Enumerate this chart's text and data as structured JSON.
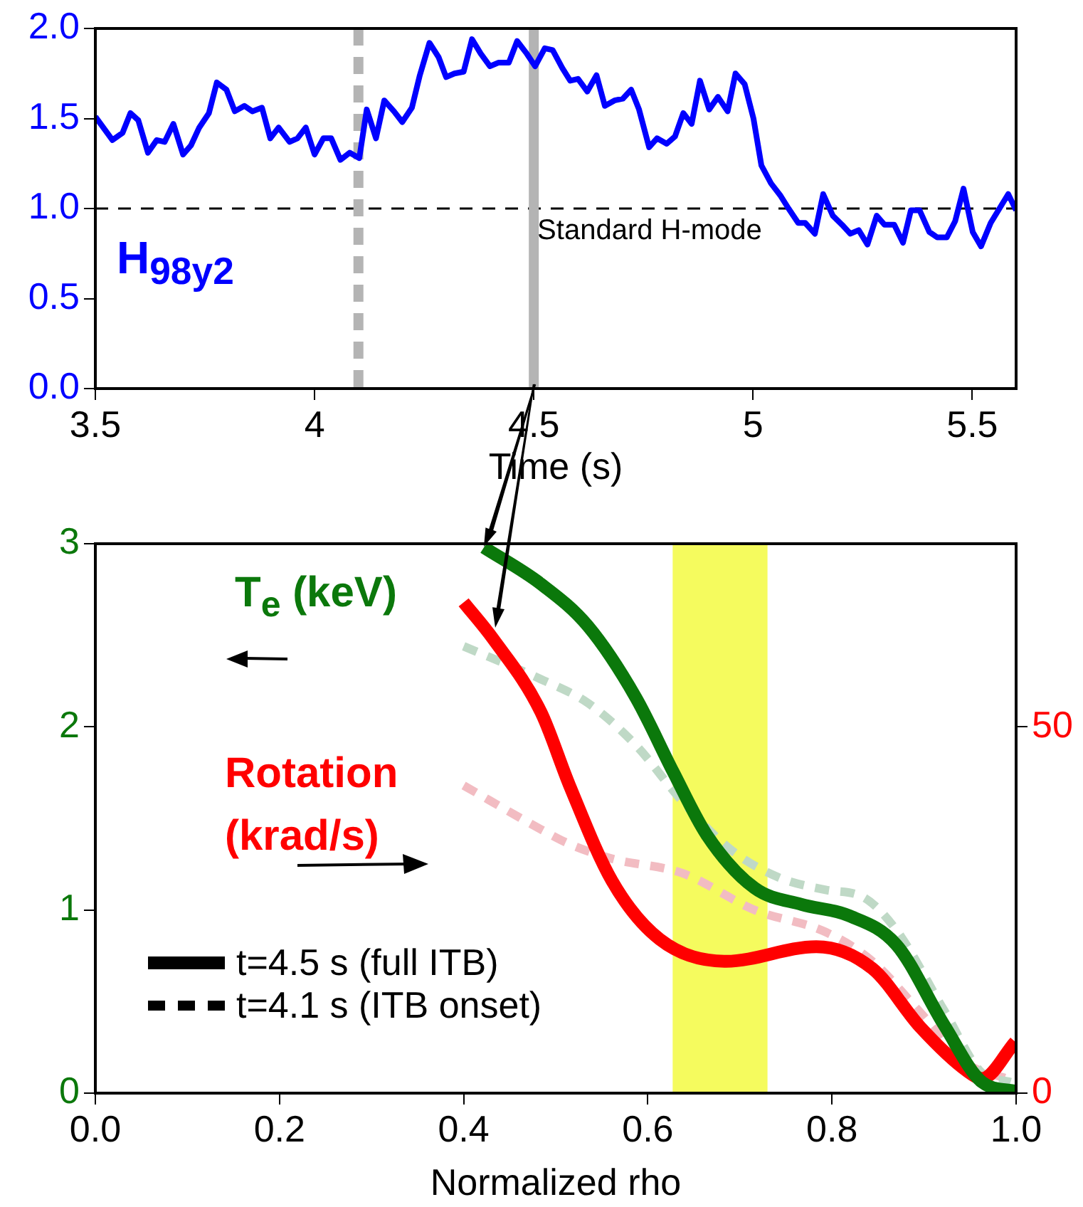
{
  "chart_data": [
    {
      "type": "line",
      "xlabel": "Time (s)",
      "xlim": [
        3.5,
        5.6
      ],
      "xticks": [
        3.5,
        4,
        4.5,
        5,
        5.5
      ],
      "ylim": [
        0,
        2
      ],
      "yticks": [
        {
          "value": 0,
          "label": "0.0"
        },
        0.5,
        {
          "value": 1,
          "label": "1.0"
        },
        1.5,
        {
          "value": 2,
          "label": "2.0"
        }
      ],
      "x": [
        3.5,
        3.539,
        3.562,
        3.58,
        3.598,
        3.62,
        3.64,
        3.658,
        3.678,
        3.7,
        3.718,
        3.737,
        3.759,
        3.777,
        3.799,
        3.818,
        3.84,
        3.858,
        3.88,
        3.899,
        3.918,
        3.943,
        3.961,
        3.98,
        4.0,
        4.02,
        4.038,
        4.059,
        4.08,
        4.102,
        4.119,
        4.14,
        4.159,
        4.181,
        4.2,
        4.222,
        4.24,
        4.262,
        4.283,
        4.3,
        4.319,
        4.34,
        4.359,
        4.379,
        4.4,
        4.419,
        4.443,
        4.462,
        4.484,
        4.503,
        4.525,
        4.543,
        4.565,
        4.583,
        4.601,
        4.622,
        4.643,
        4.662,
        4.684,
        4.703,
        4.722,
        4.74,
        4.763,
        4.781,
        4.803,
        4.822,
        4.841,
        4.86,
        4.879,
        4.9,
        4.92,
        4.942,
        4.96,
        4.981,
        5.001,
        5.019,
        5.041,
        5.063,
        5.081,
        5.103,
        5.119,
        5.141,
        5.16,
        5.182,
        5.203,
        5.222,
        5.241,
        5.261,
        5.282,
        5.3,
        5.322,
        5.342,
        5.36,
        5.38,
        5.402,
        5.42,
        5.442,
        5.461,
        5.48,
        5.501,
        5.52,
        5.542,
        5.582,
        5.6
      ],
      "series": [
        {
          "color": "#0000ff",
          "values": [
            1.51,
            1.38,
            1.42,
            1.53,
            1.49,
            1.31,
            1.38,
            1.37,
            1.47,
            1.3,
            1.35,
            1.45,
            1.53,
            1.7,
            1.66,
            1.54,
            1.57,
            1.54,
            1.56,
            1.39,
            1.45,
            1.37,
            1.39,
            1.45,
            1.3,
            1.39,
            1.39,
            1.27,
            1.31,
            1.28,
            1.55,
            1.39,
            1.6,
            1.54,
            1.48,
            1.56,
            1.74,
            1.92,
            1.84,
            1.73,
            1.75,
            1.76,
            1.94,
            1.86,
            1.79,
            1.81,
            1.81,
            1.93,
            1.86,
            1.79,
            1.89,
            1.88,
            1.78,
            1.71,
            1.72,
            1.65,
            1.74,
            1.57,
            1.6,
            1.61,
            1.66,
            1.55,
            1.34,
            1.39,
            1.36,
            1.4,
            1.53,
            1.47,
            1.71,
            1.55,
            1.62,
            1.54,
            1.75,
            1.69,
            1.5,
            1.24,
            1.14,
            1.07,
            1.0,
            0.92,
            0.92,
            0.86,
            1.08,
            0.96,
            0.91,
            0.86,
            0.88,
            0.8,
            0.96,
            0.91,
            0.91,
            0.81,
            0.99,
            0.99,
            0.87,
            0.84,
            0.84,
            0.93,
            1.11,
            0.87,
            0.79,
            0.92,
            1.08,
            0.99
          ]
        }
      ],
      "ref_lines": [
        {
          "axis": "y",
          "value": 1,
          "label": "Standard H-mode",
          "color": "#000000",
          "line_style": "dashed"
        },
        {
          "axis": "x",
          "value": 4.1,
          "color": "#b4b4b4",
          "line_style": "dashed"
        },
        {
          "axis": "x",
          "value": 4.5,
          "color": "#b4b4b4",
          "line_style": "solid"
        }
      ],
      "annotations": [
        "H$_{98y2}$"
      ]
    },
    {
      "type": "line",
      "xlabel": "Normalized rho",
      "ylabel": "T$_{e}$ (keV)",
      "xlim": [
        0,
        1
      ],
      "xticks": [
        {
          "value": 0,
          "label": "0.0"
        },
        0.2,
        0.4,
        0.6,
        0.8,
        {
          "value": 1,
          "label": "1.0"
        }
      ],
      "ylim": [
        0,
        3
      ],
      "yticks": [
        0,
        1,
        2,
        3
      ],
      "y2lim": [
        0,
        75
      ],
      "y2ticks": [
        0,
        50
      ],
      "series": [
        {
          "color": "#0b780b",
          "line_style": "solid",
          "x": [
            0.422,
            0.484,
            0.535,
            0.587,
            0.628,
            0.664,
            0.716,
            0.767,
            0.818,
            0.87,
            0.922,
            0.963,
            0.999
          ],
          "values": [
            2.98,
            2.78,
            2.55,
            2.16,
            1.75,
            1.41,
            1.12,
            1.03,
            0.97,
            0.81,
            0.37,
            0.06,
            0.01
          ]
        },
        {
          "color": "#ff0000",
          "line_style": "solid",
          "axis": "y2",
          "x": [
            0.4,
            0.432,
            0.484,
            0.515,
            0.561,
            0.613,
            0.685,
            0.783,
            0.844,
            0.896,
            0.947,
            0.963,
            0.999
          ],
          "values": [
            67,
            62,
            52,
            42,
            29,
            21,
            18,
            20,
            17,
            9,
            3,
            2,
            7
          ]
        },
        {
          "color": "#bfd9c6",
          "line_style": "dashed",
          "x": [
            0.4,
            0.484,
            0.535,
            0.587,
            0.638,
            0.69,
            0.741,
            0.793,
            0.834,
            0.87,
            0.922,
            0.963,
            0.994
          ],
          "values": [
            2.44,
            2.26,
            2.13,
            1.9,
            1.59,
            1.33,
            1.18,
            1.11,
            1.07,
            0.89,
            0.45,
            0.11,
            0.06
          ]
        },
        {
          "color": "#f2bcc2",
          "line_style": "dashed",
          "axis": "y2",
          "x": [
            0.4,
            0.484,
            0.515,
            0.561,
            0.638,
            0.716,
            0.793,
            0.844,
            0.896,
            0.947,
            0.989
          ],
          "values": [
            42,
            36,
            34,
            32,
            30,
            25,
            22,
            18,
            11,
            4,
            2
          ]
        }
      ],
      "bands": [
        {
          "axis": "x",
          "from": 0.627,
          "to": 0.73,
          "color": "#f5fb5e"
        }
      ],
      "annotations": [
        "Rotation (krad/s)",
        "t=4.5 s (full ITB)",
        "t=4.1 s (ITB onset)"
      ]
    }
  ]
}
